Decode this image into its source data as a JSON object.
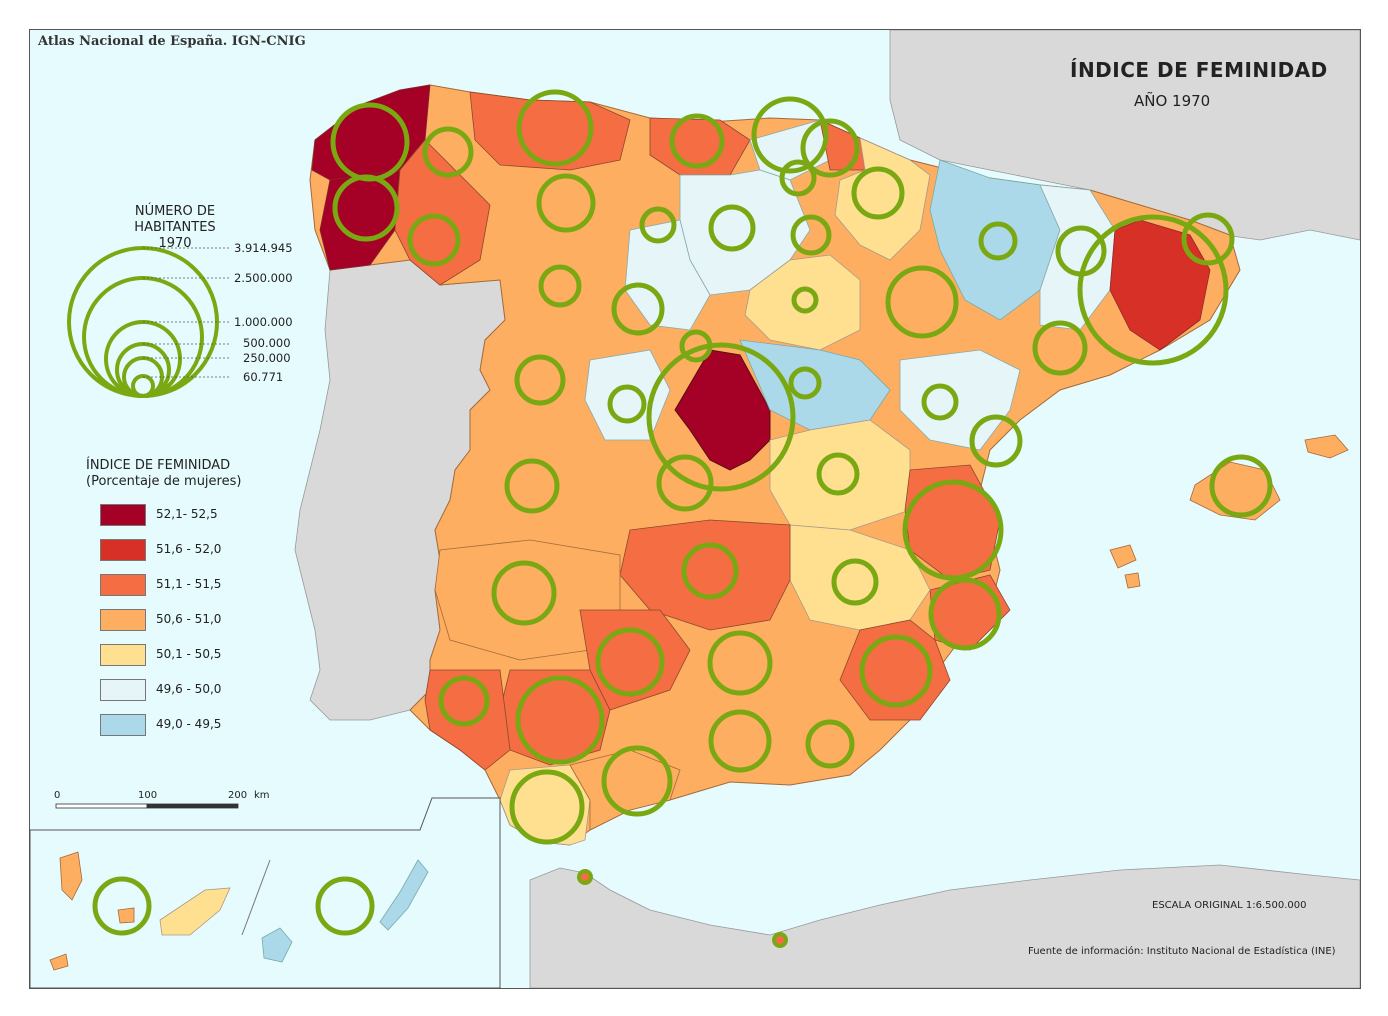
{
  "header": {
    "credit": "Atlas Nacional de España. IGN-CNIG",
    "title": "ÍNDICE DE FEMINIDAD",
    "subtitle": "AÑO 1970"
  },
  "population_legend": {
    "title_line1": "NÚMERO DE HABITANTES",
    "title_line2": "1970",
    "values": [
      "3.914.945",
      "2.500.000",
      "1.000.000",
      "500.000",
      "250.000",
      "60.771"
    ]
  },
  "feminity_legend": {
    "title_line1": "ÍNDICE DE FEMINIDAD",
    "title_line2": "(Porcentaje de mujeres)",
    "classes": [
      {
        "label": "52,1- 52,5",
        "color": "#a50026"
      },
      {
        "label": "51,6 - 52,0",
        "color": "#d73027"
      },
      {
        "label": "51,1 - 51,5",
        "color": "#f46d43"
      },
      {
        "label": "50,6 - 51,0",
        "color": "#fdae61"
      },
      {
        "label": "50,1 - 50,5",
        "color": "#fee090"
      },
      {
        "label": "49,6 - 50,0",
        "color": "#e6f5f8"
      },
      {
        "label": "49,0 - 49,5",
        "color": "#abd9e9"
      }
    ]
  },
  "scale_bar": {
    "labels": [
      "0",
      "100",
      "200"
    ],
    "unit": "km"
  },
  "footer": {
    "scale": "ESCALA ORIGINAL 1:6.500.000",
    "source": "Fuente de información: Instituto Nacional de Estadística (INE)"
  },
  "colors": {
    "sea": "#e6fbfd",
    "foreign_land": "#d9d9d9",
    "circle": "#7aa812"
  }
}
